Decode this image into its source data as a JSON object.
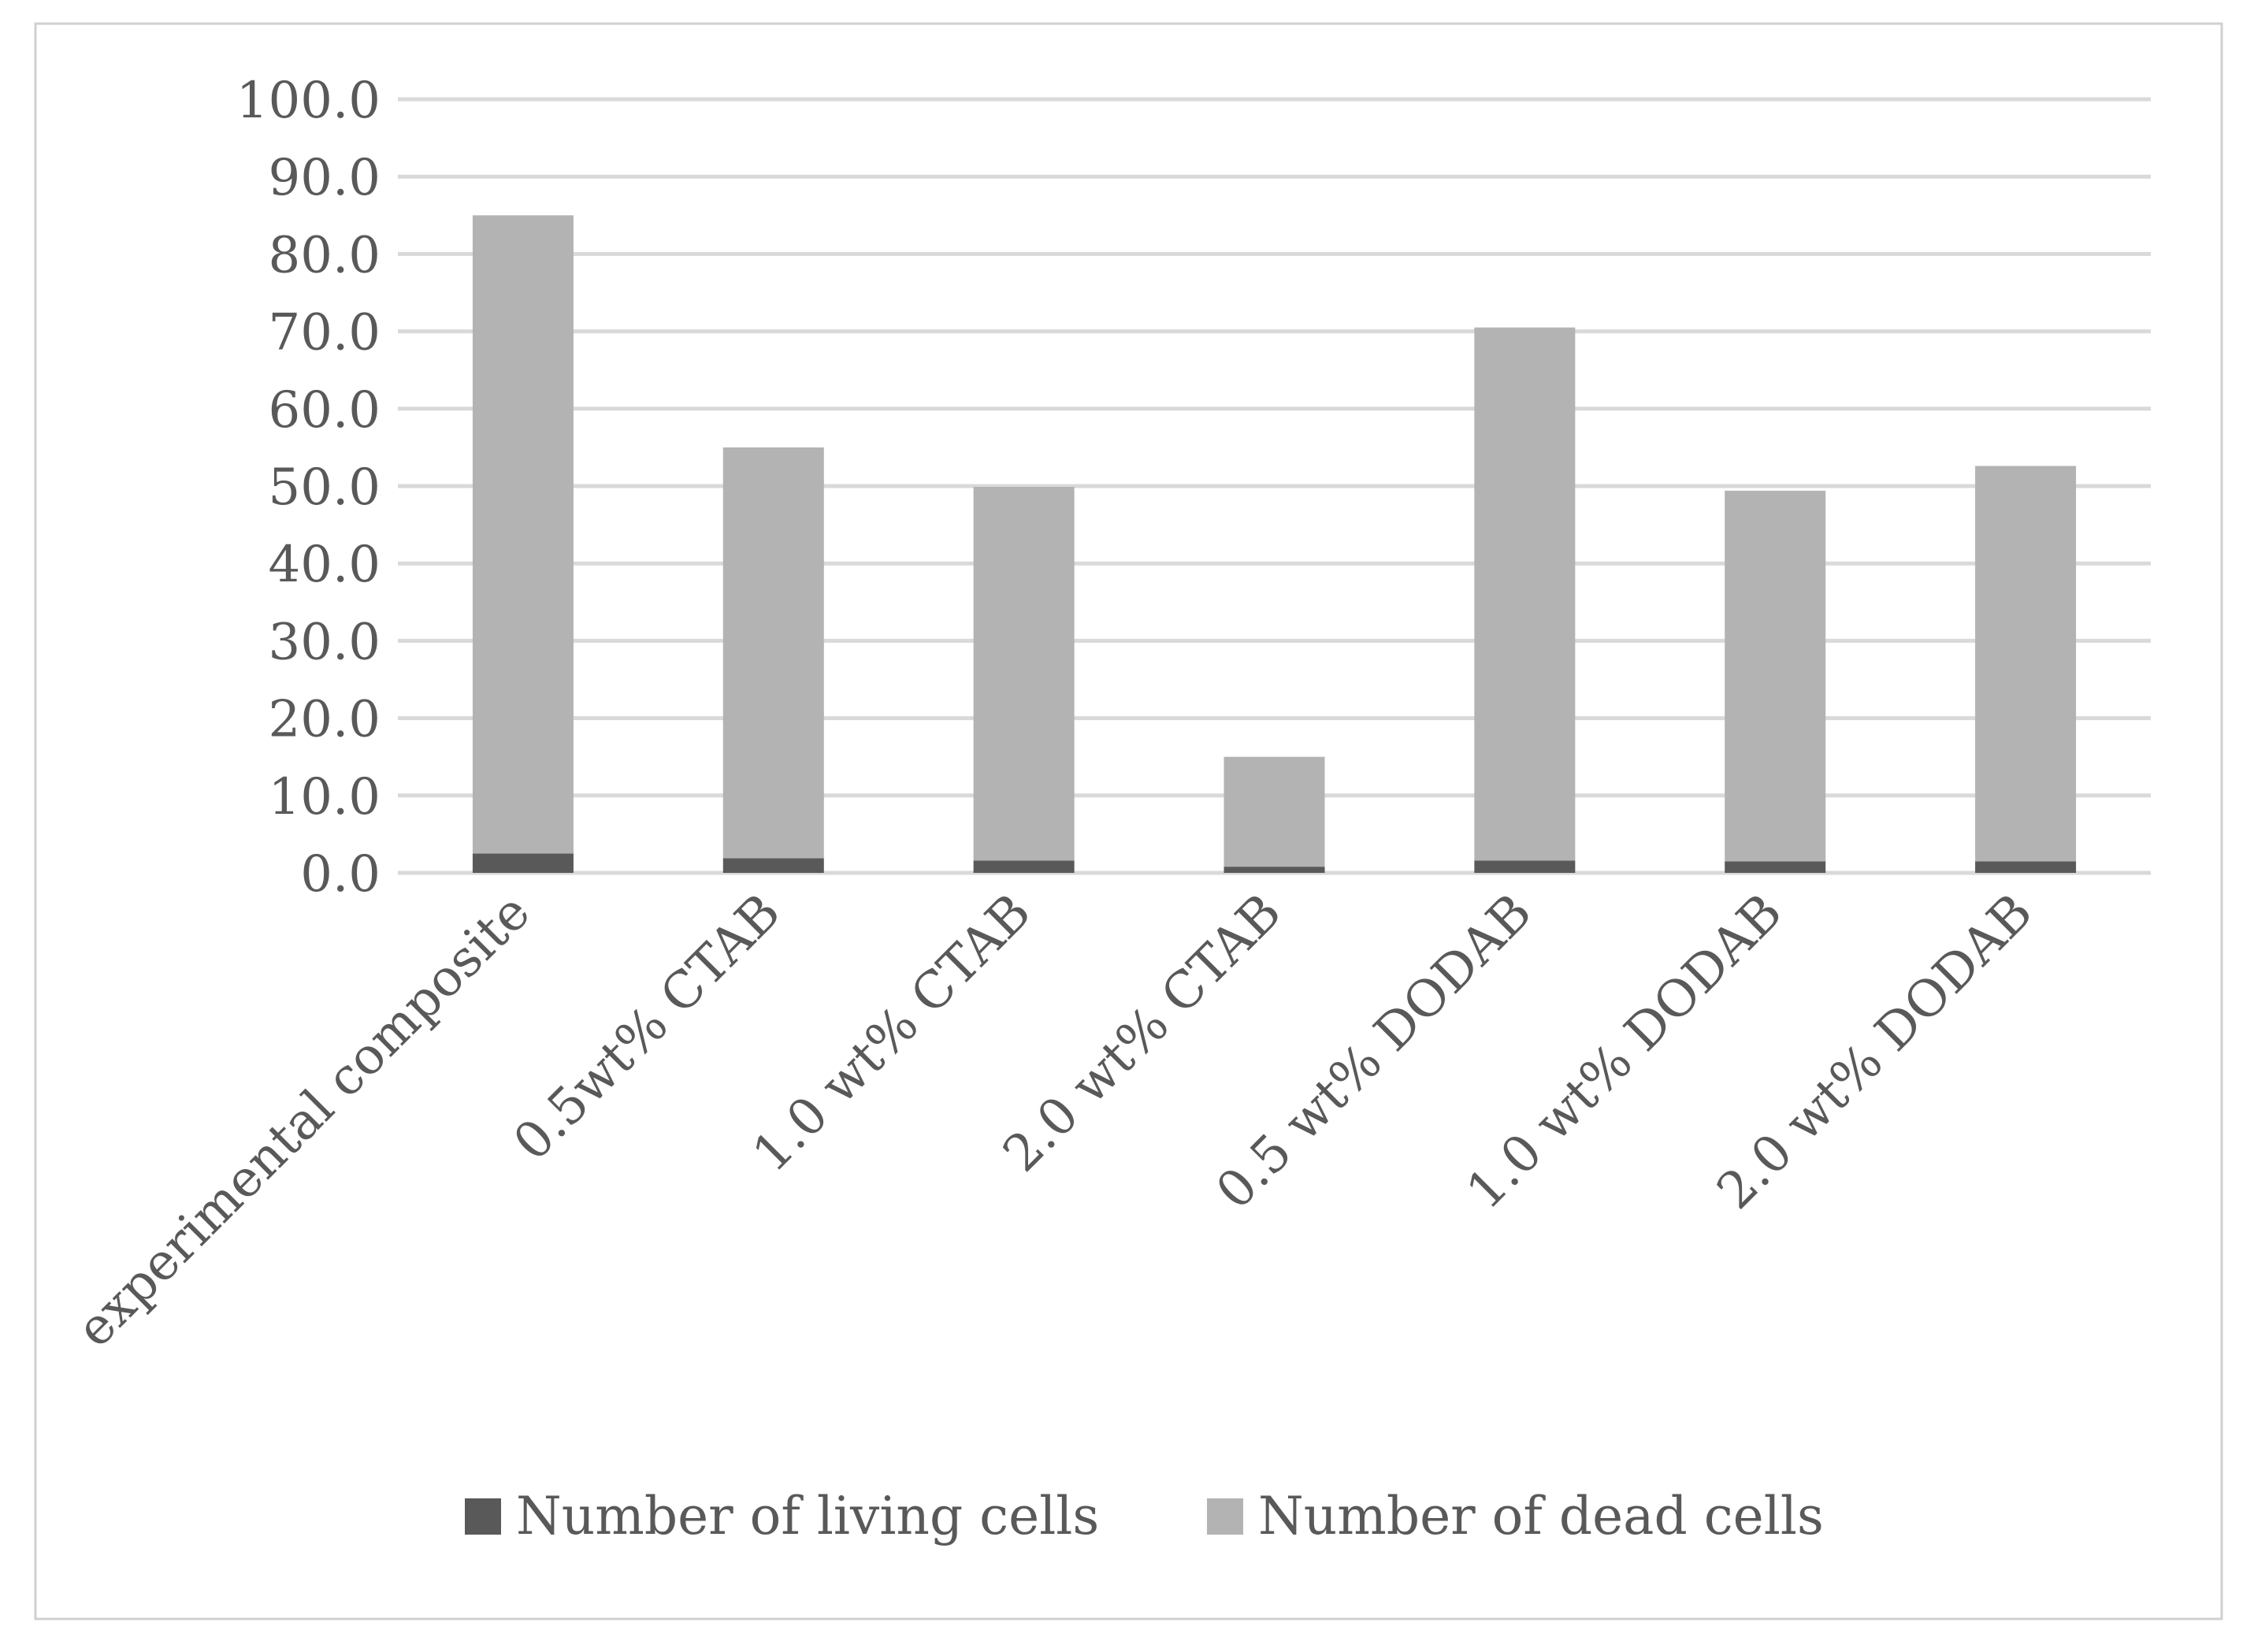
{
  "chart_data": {
    "type": "bar",
    "stacked": true,
    "title": "",
    "xlabel": "",
    "ylabel": "",
    "ylim": [
      0,
      100
    ],
    "yticks": [
      "0.0",
      "10.0",
      "20.0",
      "30.0",
      "40.0",
      "50.0",
      "60.0",
      "70.0",
      "80.0",
      "90.0",
      "100.0"
    ],
    "grid": true,
    "legend_position": "bottom",
    "categories": [
      "experimental composite",
      "0.5wt% CTAB",
      "1.0 wt% CTAB",
      "2.0 wt% CTAB",
      "0.5 wt% DODAB",
      "1.0 wt% DODAB",
      "2.0 wt% DODAB"
    ],
    "series": [
      {
        "name": "Number of living cells",
        "color": "#595959",
        "values": [
          2.5,
          1.9,
          1.6,
          0.8,
          1.6,
          1.5,
          1.5
        ]
      },
      {
        "name": "Number of dead cells",
        "color": "#b3b3b3",
        "values": [
          82.5,
          53.1,
          48.3,
          14.2,
          68.9,
          47.9,
          51.1
        ]
      }
    ]
  }
}
